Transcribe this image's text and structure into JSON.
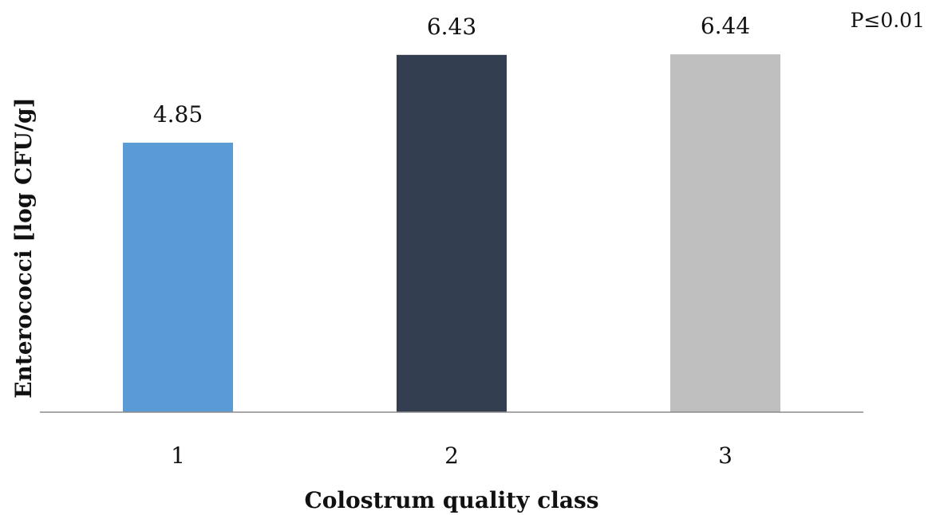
{
  "chart_data": {
    "type": "bar",
    "categories": [
      "1",
      "2",
      "3"
    ],
    "values": [
      4.85,
      6.43,
      6.44
    ],
    "data_labels": [
      "4.85",
      "6.43",
      "6.44"
    ],
    "colors": [
      "#5B9BD5",
      "#333F50",
      "#BFBFBF"
    ],
    "xlabel": "Colostrum quality class",
    "ylabel": "Enterococci [log CFU/g]",
    "annotation": "P≤0.01",
    "ylim": [
      0,
      7
    ],
    "grid": false,
    "legend": "none"
  }
}
